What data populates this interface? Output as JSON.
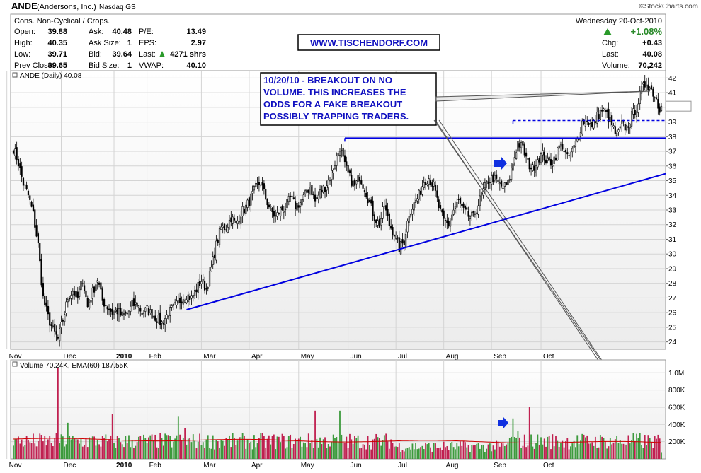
{
  "header": {
    "symbol": "ANDE",
    "company": "(Andersons, Inc.)",
    "exchange": "Nasdaq GS",
    "credit": "©StockCharts.com",
    "sector": "Cons. Non-Cyclical / Crops.",
    "date": "Wednesday  20-Oct-2010",
    "pct_change": "+1.08%",
    "stats_left": [
      {
        "label": "Open:",
        "value": "39.88"
      },
      {
        "label": "High:",
        "value": "40.35"
      },
      {
        "label": "Low:",
        "value": "39.71"
      },
      {
        "label": "Prev Close:",
        "value": "39.65"
      }
    ],
    "stats_mid": [
      {
        "label": "Ask:",
        "value": "40.48"
      },
      {
        "label": "Ask Size:",
        "value": "1"
      },
      {
        "label": "Bid:",
        "value": "39.64"
      },
      {
        "label": "Bid Size:",
        "value": "1"
      }
    ],
    "stats_right": [
      {
        "label": "P/E:",
        "value": "13.49"
      },
      {
        "label": "EPS:",
        "value": "2.97"
      },
      {
        "label": "Last:",
        "value": "4271 shrs"
      },
      {
        "label": "VWAP:",
        "value": "40.10"
      }
    ],
    "stats_far": [
      {
        "label": "Chg:",
        "value": "+0.43"
      },
      {
        "label": "Last:",
        "value": "40.08"
      },
      {
        "label": "Volume:",
        "value": "70,242"
      }
    ],
    "website": "WWW.TISCHENDORF.COM"
  },
  "colors": {
    "up_volume": "#3c9a3c",
    "down_volume": "#c02050",
    "ema_line": "#d00000",
    "trendline": "#0000e0",
    "annotation_text": "#1010c0",
    "gain_arrow": "#2a9a2a"
  },
  "annotation": {
    "lines": [
      "10/20/10 - BREAKOUT ON NO",
      "VOLUME. THIS INCREASES THE",
      "ODDS FOR A FAKE  BREAKOUT",
      "POSSIBLY TRAPPING TRADERS."
    ]
  },
  "chart_data": [
    {
      "type": "candlestick",
      "legend": "ANDE (Daily) 40.08",
      "ylim": [
        23.5,
        42.5
      ],
      "y_ticks": [
        24,
        25,
        26,
        27,
        28,
        29,
        30,
        31,
        32,
        33,
        34,
        35,
        36,
        37,
        38,
        39,
        40,
        41,
        42
      ],
      "x_ticks": [
        "Nov",
        "Dec",
        "2010",
        "Feb",
        "Mar",
        "Apr",
        "May",
        "Jun",
        "Jul",
        "Aug",
        "Sep",
        "Oct"
      ],
      "last_price": 40.08,
      "close_path": [
        [
          0,
          37.2
        ],
        [
          3,
          36.2
        ],
        [
          6,
          34.8
        ],
        [
          9,
          34.0
        ],
        [
          12,
          32.7
        ],
        [
          15,
          30.6
        ],
        [
          18,
          27.0
        ],
        [
          21,
          25.7
        ],
        [
          24,
          24.8
        ],
        [
          27,
          24.2
        ],
        [
          30,
          25.5
        ],
        [
          33,
          27.0
        ],
        [
          36,
          27.5
        ],
        [
          39,
          27.0
        ],
        [
          42,
          28.3
        ],
        [
          45,
          26.4
        ],
        [
          48,
          27.4
        ],
        [
          51,
          28.3
        ],
        [
          54,
          26.8
        ],
        [
          57,
          26.4
        ],
        [
          60,
          26.0
        ],
        [
          63,
          26.1
        ],
        [
          66,
          25.8
        ],
        [
          69,
          25.9
        ],
        [
          72,
          26.5
        ],
        [
          75,
          26.6
        ],
        [
          78,
          26.0
        ],
        [
          81,
          26.2
        ],
        [
          84,
          25.9
        ],
        [
          87,
          25.6
        ],
        [
          90,
          25.3
        ],
        [
          93,
          25.8
        ],
        [
          96,
          26.2
        ],
        [
          99,
          26.5
        ],
        [
          102,
          27.0
        ],
        [
          105,
          27.2
        ],
        [
          108,
          27.0
        ],
        [
          111,
          27.6
        ],
        [
          114,
          28.2
        ],
        [
          117,
          27.6
        ],
        [
          120,
          29.0
        ],
        [
          123,
          30.6
        ],
        [
          126,
          31.8
        ],
        [
          129,
          31.8
        ],
        [
          132,
          32.5
        ],
        [
          135,
          32.0
        ],
        [
          138,
          32.8
        ],
        [
          141,
          33.2
        ],
        [
          144,
          33.8
        ],
        [
          147,
          34.5
        ],
        [
          150,
          34.9
        ],
        [
          153,
          33.8
        ],
        [
          156,
          33.0
        ],
        [
          159,
          32.5
        ],
        [
          162,
          33.0
        ],
        [
          165,
          33.2
        ],
        [
          168,
          33.8
        ],
        [
          171,
          33.3
        ],
        [
          174,
          33.5
        ],
        [
          177,
          34.0
        ],
        [
          180,
          34.6
        ],
        [
          183,
          33.6
        ],
        [
          186,
          34.2
        ],
        [
          189,
          34.6
        ],
        [
          192,
          35.2
        ],
        [
          195,
          36.2
        ],
        [
          198,
          37.3
        ],
        [
          201,
          36.0
        ],
        [
          204,
          35.2
        ],
        [
          207,
          34.6
        ],
        [
          210,
          35.3
        ],
        [
          213,
          34.5
        ],
        [
          216,
          33.5
        ],
        [
          219,
          32.5
        ],
        [
          222,
          32.0
        ],
        [
          225,
          33.3
        ],
        [
          228,
          32.0
        ],
        [
          231,
          31.4
        ],
        [
          234,
          30.4
        ],
        [
          237,
          30.9
        ],
        [
          240,
          32.8
        ],
        [
          243,
          33.4
        ],
        [
          246,
          34.0
        ],
        [
          249,
          35.0
        ],
        [
          252,
          35.2
        ],
        [
          255,
          34.6
        ],
        [
          258,
          33.2
        ],
        [
          261,
          32.2
        ],
        [
          264,
          32.0
        ],
        [
          267,
          33.0
        ],
        [
          270,
          33.6
        ],
        [
          273,
          32.9
        ],
        [
          276,
          32.6
        ],
        [
          279,
          32.5
        ],
        [
          282,
          33.4
        ],
        [
          285,
          34.3
        ],
        [
          288,
          35.0
        ],
        [
          291,
          35.2
        ],
        [
          294,
          34.8
        ],
        [
          297,
          34.5
        ],
        [
          300,
          34.8
        ],
        [
          303,
          36.2
        ],
        [
          306,
          37.6
        ],
        [
          309,
          37.2
        ],
        [
          312,
          36.2
        ],
        [
          315,
          35.8
        ],
        [
          318,
          36.5
        ],
        [
          321,
          36.8
        ],
        [
          324,
          36.2
        ],
        [
          327,
          36.3
        ],
        [
          330,
          37.0
        ],
        [
          333,
          37.4
        ],
        [
          336,
          36.5
        ],
        [
          339,
          37.0
        ],
        [
          342,
          37.8
        ],
        [
          345,
          39.0
        ],
        [
          348,
          39.2
        ],
        [
          351,
          38.6
        ],
        [
          354,
          39.4
        ],
        [
          357,
          39.8
        ],
        [
          360,
          39.5
        ],
        [
          363,
          38.8
        ],
        [
          366,
          38.0
        ],
        [
          369,
          38.8
        ],
        [
          372,
          38.6
        ],
        [
          375,
          39.4
        ],
        [
          378,
          40.0
        ],
        [
          381,
          41.2
        ],
        [
          384,
          41.7
        ],
        [
          387,
          41.2
        ],
        [
          390,
          40.6
        ],
        [
          392,
          39.65
        ],
        [
          393,
          40.08
        ]
      ],
      "support_lines": [
        {
          "name": "rising trendline",
          "from": [
            105,
            26.2
          ],
          "to": [
            405,
            35.8
          ]
        },
        {
          "name": "resistance",
          "from": [
            201,
            37.9
          ],
          "to": [
            405,
            37.9
          ]
        },
        {
          "name": "breakout level",
          "from": [
            303,
            39.1
          ],
          "to": [
            405,
            39.1
          ],
          "dashed": true
        }
      ]
    },
    {
      "type": "bar",
      "legend": "Volume 70.24K, EMA(60) 187.55K",
      "ylim": [
        0,
        1150000
      ],
      "y_ticks": [
        "200K",
        "400K",
        "600K",
        "800K",
        "1.0M"
      ],
      "ema_start": 230000,
      "ema_end": 187550,
      "last_volume": 70240
    }
  ]
}
